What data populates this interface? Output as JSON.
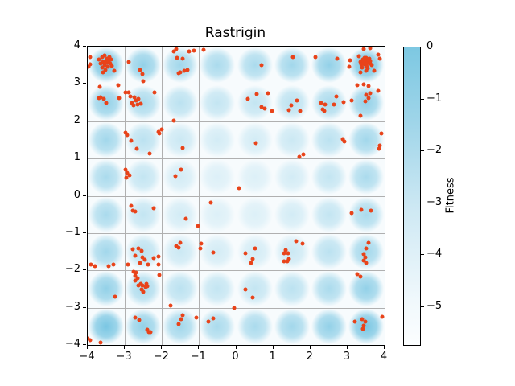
{
  "chart_data": {
    "type": "scatter",
    "title": "Rastrigin",
    "xlabel": "",
    "ylabel": "",
    "xlim": [
      -4,
      4
    ],
    "ylim": [
      -4,
      4
    ],
    "xticks": [
      -4,
      -3,
      -2,
      -1,
      0,
      1,
      2,
      3,
      4
    ],
    "yticks": [
      -4,
      -3,
      -2,
      -1,
      0,
      1,
      2,
      3,
      4
    ],
    "grid": true,
    "grid_color": "#b0b0b0",
    "background_function": "rastrigin-heatmap",
    "heatmap_blob_color": "#5ab9dc",
    "point_color": "#e8431a",
    "colorbar": {
      "label": "Fitness",
      "ticks": [
        0,
        -1,
        -2,
        -3,
        -4,
        -5
      ],
      "vmax": 0,
      "vmin": -5.73,
      "top_color": "#7dc8e2",
      "bottom_color": "#fcfeff",
      "position": "right"
    },
    "points": [
      [
        -3.62,
        3.72
      ],
      [
        -3.55,
        3.76
      ],
      [
        -3.49,
        3.68
      ],
      [
        -3.58,
        3.6
      ],
      [
        -3.47,
        3.56
      ],
      [
        -3.55,
        3.5
      ],
      [
        -3.62,
        3.44
      ],
      [
        -3.44,
        3.63
      ],
      [
        -3.4,
        3.55
      ],
      [
        -3.52,
        3.38
      ],
      [
        -3.46,
        3.46
      ],
      [
        -3.58,
        3.31
      ],
      [
        -3.66,
        3.55
      ],
      [
        -3.69,
        3.66
      ],
      [
        -3.42,
        3.73
      ],
      [
        -3.38,
        3.66
      ],
      [
        -3.35,
        3.48
      ],
      [
        -3.28,
        3.35
      ],
      [
        -3.5,
        3.62
      ],
      [
        -3.53,
        3.57
      ],
      [
        -3.93,
        3.72
      ],
      [
        -3.93,
        3.53
      ],
      [
        -3.97,
        3.46
      ],
      [
        -2.9,
        3.6
      ],
      [
        -2.59,
        3.38
      ],
      [
        -2.52,
        3.27
      ],
      [
        -2.5,
        3.08
      ],
      [
        -1.68,
        3.88
      ],
      [
        -1.62,
        3.94
      ],
      [
        -1.6,
        3.7
      ],
      [
        -1.44,
        3.67
      ],
      [
        -1.5,
        3.3
      ],
      [
        -1.39,
        3.35
      ],
      [
        -1.56,
        3.28
      ],
      [
        -1.27,
        3.87
      ],
      [
        -1.13,
        3.89
      ],
      [
        -0.88,
        3.92
      ],
      [
        -1.32,
        3.37
      ],
      [
        0.68,
        3.5
      ],
      [
        -3.67,
        2.92
      ],
      [
        -3.17,
        2.96
      ],
      [
        -3.7,
        2.62
      ],
      [
        -3.65,
        2.65
      ],
      [
        -3.57,
        2.6
      ],
      [
        -3.5,
        2.49
      ],
      [
        -3.15,
        2.62
      ],
      [
        -2.99,
        2.77
      ],
      [
        -2.9,
        2.77
      ],
      [
        -2.85,
        2.66
      ],
      [
        -2.74,
        2.64
      ],
      [
        -2.7,
        2.56
      ],
      [
        -2.63,
        2.6
      ],
      [
        -2.81,
        2.49
      ],
      [
        -2.77,
        2.43
      ],
      [
        -2.66,
        2.45
      ],
      [
        -2.56,
        2.47
      ],
      [
        -2.2,
        2.78
      ],
      [
        -1.67,
        2.02
      ],
      [
        0.32,
        2.6
      ],
      [
        0.56,
        2.72
      ],
      [
        0.86,
        2.75
      ],
      [
        0.69,
        2.38
      ],
      [
        0.77,
        2.34
      ],
      [
        0.97,
        2.28
      ],
      [
        0.53,
        1.41
      ],
      [
        -2.99,
        1.7
      ],
      [
        -2.94,
        1.63
      ],
      [
        -2.83,
        1.48
      ],
      [
        -2.1,
        1.72
      ],
      [
        -2.06,
        1.67
      ],
      [
        -2.0,
        1.78
      ],
      [
        -2.68,
        1.27
      ],
      [
        -2.34,
        1.14
      ],
      [
        -1.44,
        1.29
      ],
      [
        1.53,
        3.71
      ],
      [
        2.14,
        3.72
      ],
      [
        2.72,
        3.67
      ],
      [
        3.07,
        3.64
      ],
      [
        3.05,
        3.46
      ],
      [
        3.35,
        3.6
      ],
      [
        3.42,
        3.66
      ],
      [
        3.5,
        3.7
      ],
      [
        3.55,
        3.62
      ],
      [
        3.45,
        3.52
      ],
      [
        3.52,
        3.47
      ],
      [
        3.6,
        3.55
      ],
      [
        3.58,
        3.68
      ],
      [
        3.48,
        3.58
      ],
      [
        3.4,
        3.45
      ],
      [
        3.55,
        3.42
      ],
      [
        3.62,
        3.62
      ],
      [
        3.45,
        3.7
      ],
      [
        3.38,
        3.52
      ],
      [
        3.65,
        3.5
      ],
      [
        3.5,
        3.35
      ],
      [
        3.44,
        3.58
      ],
      [
        3.53,
        3.55
      ],
      [
        3.43,
        3.94
      ],
      [
        3.61,
        3.96
      ],
      [
        3.83,
        3.79
      ],
      [
        3.88,
        3.67
      ],
      [
        3.72,
        3.35
      ],
      [
        3.3,
        3.75
      ],
      [
        3.35,
        3.3
      ],
      [
        3.27,
        2.96
      ],
      [
        3.44,
        2.99
      ],
      [
        3.57,
        2.94
      ],
      [
        3.83,
        2.82
      ],
      [
        3.5,
        2.71
      ],
      [
        3.61,
        2.76
      ],
      [
        3.57,
        2.62
      ],
      [
        3.48,
        2.54
      ],
      [
        3.12,
        2.56
      ],
      [
        2.9,
        2.51
      ],
      [
        2.71,
        2.66
      ],
      [
        2.29,
        2.49
      ],
      [
        2.4,
        2.45
      ],
      [
        2.64,
        2.45
      ],
      [
        2.33,
        2.32
      ],
      [
        2.38,
        2.28
      ],
      [
        1.64,
        2.56
      ],
      [
        1.49,
        2.43
      ],
      [
        1.42,
        2.3
      ],
      [
        1.73,
        2.28
      ],
      [
        3.35,
        2.15
      ],
      [
        2.88,
        1.52
      ],
      [
        2.92,
        1.46
      ],
      [
        3.92,
        1.67
      ],
      [
        3.88,
        1.35
      ],
      [
        3.85,
        1.27
      ],
      [
        1.7,
        1.04
      ],
      [
        1.81,
        1.1
      ],
      [
        -2.99,
        0.7
      ],
      [
        -2.94,
        0.61
      ],
      [
        -2.88,
        0.55
      ],
      [
        -2.97,
        0.49
      ],
      [
        -1.49,
        0.7
      ],
      [
        -1.64,
        0.53
      ],
      [
        -2.83,
        -0.27
      ],
      [
        -2.79,
        -0.4
      ],
      [
        -2.72,
        -0.42
      ],
      [
        -2.23,
        -0.33
      ],
      [
        -1.36,
        -0.62
      ],
      [
        0.08,
        0.21
      ],
      [
        -0.69,
        -0.18
      ],
      [
        -1.03,
        -0.81
      ],
      [
        -0.94,
        -1.28
      ],
      [
        3.11,
        -0.46
      ],
      [
        3.37,
        -0.38
      ],
      [
        3.63,
        -0.4
      ],
      [
        1.62,
        -1.22
      ],
      [
        1.79,
        -1.28
      ],
      [
        -2.79,
        -1.43
      ],
      [
        -2.63,
        -1.41
      ],
      [
        -2.55,
        -1.48
      ],
      [
        -2.72,
        -1.6
      ],
      [
        -2.52,
        -1.65
      ],
      [
        -2.46,
        -1.71
      ],
      [
        -2.23,
        -1.67
      ],
      [
        -2.1,
        -1.63
      ],
      [
        -2.59,
        -1.81
      ],
      [
        -2.37,
        -1.85
      ],
      [
        -2.1,
        -1.84
      ],
      [
        -2.91,
        -1.85
      ],
      [
        -3.91,
        -1.84
      ],
      [
        -3.8,
        -1.88
      ],
      [
        -3.43,
        -1.88
      ],
      [
        -3.3,
        -1.84
      ],
      [
        -1.62,
        -1.35
      ],
      [
        -1.55,
        -1.39
      ],
      [
        -1.5,
        -1.26
      ],
      [
        -2.77,
        -2.03
      ],
      [
        -2.7,
        -2.05
      ],
      [
        -2.72,
        -2.14
      ],
      [
        -2.66,
        -2.21
      ],
      [
        -2.72,
        -2.27
      ],
      [
        -2.06,
        -2.12
      ],
      [
        -2.63,
        -2.4
      ],
      [
        -2.57,
        -2.36
      ],
      [
        -2.52,
        -2.4
      ],
      [
        -2.44,
        -2.44
      ],
      [
        -2.42,
        -2.36
      ],
      [
        -2.4,
        -2.42
      ],
      [
        -2.55,
        -2.51
      ],
      [
        -2.5,
        -2.57
      ],
      [
        -3.26,
        -2.7
      ],
      [
        -1.76,
        -2.94
      ],
      [
        -2.72,
        -3.26
      ],
      [
        -2.61,
        -3.34
      ],
      [
        -2.39,
        -3.59
      ],
      [
        -2.35,
        -3.65
      ],
      [
        -2.3,
        -3.65
      ],
      [
        -1.44,
        -3.2
      ],
      [
        -1.49,
        -3.31
      ],
      [
        -1.55,
        -3.44
      ],
      [
        -3.94,
        -3.87
      ],
      [
        -3.65,
        -3.93
      ],
      [
        -3.99,
        -3.83
      ],
      [
        -0.97,
        -1.41
      ],
      [
        -0.61,
        -1.52
      ],
      [
        0.24,
        -1.54
      ],
      [
        0.51,
        -1.41
      ],
      [
        0.44,
        -1.69
      ],
      [
        0.4,
        -1.79
      ],
      [
        0.24,
        -2.51
      ],
      [
        0.44,
        -2.72
      ],
      [
        -0.05,
        -3.01
      ],
      [
        -1.07,
        -3.26
      ],
      [
        -0.75,
        -3.37
      ],
      [
        -0.62,
        -3.28
      ],
      [
        1.34,
        -1.45
      ],
      [
        1.4,
        -1.54
      ],
      [
        1.42,
        -1.69
      ],
      [
        1.38,
        -1.76
      ],
      [
        1.28,
        -1.54
      ],
      [
        1.28,
        -1.76
      ],
      [
        3.5,
        -1.41
      ],
      [
        3.44,
        -1.56
      ],
      [
        3.47,
        -1.65
      ],
      [
        3.44,
        -1.73
      ],
      [
        3.5,
        -1.79
      ],
      [
        3.57,
        -1.26
      ],
      [
        3.27,
        -2.1
      ],
      [
        3.35,
        -2.16
      ],
      [
        3.2,
        -3.37
      ],
      [
        3.4,
        -3.31
      ],
      [
        3.47,
        -3.37
      ],
      [
        3.44,
        -3.48
      ],
      [
        3.42,
        -3.57
      ],
      [
        3.93,
        -3.25
      ]
    ]
  }
}
